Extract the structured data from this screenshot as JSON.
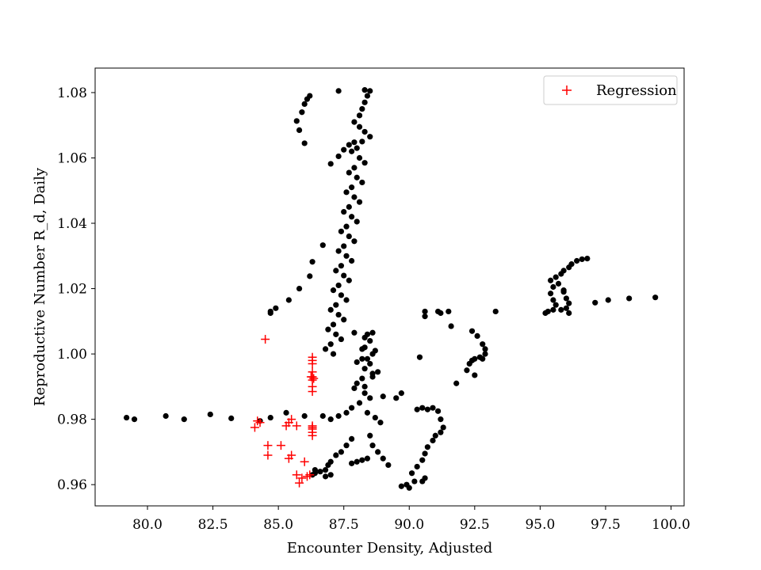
{
  "chart_data": {
    "type": "scatter",
    "title": "",
    "xlabel": "Encounter Density, Adjusted",
    "ylabel": "Reproductive Number R_d, Daily",
    "xlim": [
      78.0,
      100.5
    ],
    "ylim": [
      0.9535,
      1.0875
    ],
    "xticks": [
      80.0,
      82.5,
      85.0,
      87.5,
      90.0,
      92.5,
      95.0,
      97.5,
      100.0
    ],
    "xtick_labels": [
      "80.0",
      "82.5",
      "85.0",
      "87.5",
      "90.0",
      "92.5",
      "95.0",
      "97.5",
      "100.0"
    ],
    "yticks": [
      0.96,
      0.98,
      1.0,
      1.02,
      1.04,
      1.06,
      1.08
    ],
    "ytick_labels": [
      "0.96",
      "0.98",
      "1.00",
      "1.02",
      "1.04",
      "1.06",
      "1.08"
    ],
    "grid": false,
    "legend": {
      "position": "top-right",
      "entries": [
        "Regression"
      ]
    },
    "series": [
      {
        "role": "observed",
        "color": "#000000",
        "marker": "circle",
        "points": [
          [
            79.2,
            0.9805
          ],
          [
            79.5,
            0.98
          ],
          [
            80.7,
            0.981
          ],
          [
            81.4,
            0.98
          ],
          [
            82.4,
            0.9815
          ],
          [
            83.2,
            0.9803
          ],
          [
            84.3,
            0.9795
          ],
          [
            84.7,
            0.9805
          ],
          [
            85.3,
            0.982
          ],
          [
            86.0,
            0.981
          ],
          [
            84.7,
            1.0125
          ],
          [
            84.7,
            1.013
          ],
          [
            84.9,
            1.014
          ],
          [
            85.4,
            1.0165
          ],
          [
            85.8,
            1.02
          ],
          [
            86.2,
            1.0238
          ],
          [
            86.3,
            1.0282
          ],
          [
            86.7,
            1.0333
          ],
          [
            85.7,
            1.0713
          ],
          [
            85.8,
            1.0685
          ],
          [
            85.9,
            1.074
          ],
          [
            86.0,
            1.0765
          ],
          [
            86.1,
            1.078
          ],
          [
            86.2,
            1.079
          ],
          [
            86.0,
            1.0645
          ],
          [
            87.0,
            1.0582
          ],
          [
            87.3,
            1.0605
          ],
          [
            87.5,
            1.0625
          ],
          [
            87.7,
            1.064
          ],
          [
            87.9,
            1.0648
          ],
          [
            87.3,
            1.0805
          ],
          [
            88.3,
            1.0808
          ],
          [
            88.5,
            1.0805
          ],
          [
            88.4,
            1.079
          ],
          [
            88.3,
            1.077
          ],
          [
            88.2,
            1.075
          ],
          [
            88.1,
            1.073
          ],
          [
            87.9,
            1.071
          ],
          [
            88.1,
            1.0695
          ],
          [
            88.3,
            1.068
          ],
          [
            88.5,
            1.0665
          ],
          [
            88.2,
            1.065
          ],
          [
            88.0,
            1.063
          ],
          [
            87.8,
            1.062
          ],
          [
            88.1,
            1.06
          ],
          [
            88.3,
            1.0585
          ],
          [
            87.9,
            1.057
          ],
          [
            87.7,
            1.0555
          ],
          [
            88.0,
            1.054
          ],
          [
            88.2,
            1.0525
          ],
          [
            87.8,
            1.051
          ],
          [
            87.6,
            1.0495
          ],
          [
            87.9,
            1.048
          ],
          [
            88.1,
            1.0465
          ],
          [
            87.7,
            1.045
          ],
          [
            87.5,
            1.0435
          ],
          [
            87.8,
            1.042
          ],
          [
            88.0,
            1.0405
          ],
          [
            87.6,
            1.039
          ],
          [
            87.4,
            1.0375
          ],
          [
            87.7,
            1.036
          ],
          [
            87.9,
            1.0345
          ],
          [
            87.5,
            1.033
          ],
          [
            87.3,
            1.0315
          ],
          [
            87.6,
            1.03
          ],
          [
            87.8,
            1.0285
          ],
          [
            87.4,
            1.027
          ],
          [
            87.2,
            1.0255
          ],
          [
            87.5,
            1.024
          ],
          [
            87.7,
            1.0225
          ],
          [
            87.3,
            1.021
          ],
          [
            87.1,
            1.0195
          ],
          [
            87.4,
            1.018
          ],
          [
            87.6,
            1.0165
          ],
          [
            87.2,
            1.015
          ],
          [
            87.0,
            1.0135
          ],
          [
            87.3,
            1.012
          ],
          [
            87.5,
            1.0105
          ],
          [
            87.1,
            1.009
          ],
          [
            86.9,
            1.0075
          ],
          [
            87.2,
            1.006
          ],
          [
            87.4,
            1.0045
          ],
          [
            87.0,
            1.003
          ],
          [
            86.8,
            1.0015
          ],
          [
            87.1,
            1.0
          ],
          [
            88.4,
            1.006
          ],
          [
            88.5,
            1.004
          ],
          [
            88.3,
            1.002
          ],
          [
            88.6,
            1.0
          ],
          [
            88.2,
            0.9985
          ],
          [
            88.5,
            0.997
          ],
          [
            88.3,
            0.9955
          ],
          [
            88.6,
            0.994
          ],
          [
            88.2,
            0.9925
          ],
          [
            88.0,
            0.991
          ],
          [
            87.9,
            0.9895
          ],
          [
            88.3,
            0.988
          ],
          [
            88.5,
            0.9865
          ],
          [
            88.1,
            0.985
          ],
          [
            87.8,
            0.9835
          ],
          [
            88.4,
            0.982
          ],
          [
            88.7,
            0.9805
          ],
          [
            88.9,
            0.979
          ],
          [
            87.6,
            0.982
          ],
          [
            87.3,
            0.981
          ],
          [
            87.0,
            0.98
          ],
          [
            86.7,
            0.981
          ],
          [
            87.9,
            1.0065
          ],
          [
            88.3,
            1.005
          ],
          [
            88.6,
            1.0065
          ],
          [
            88.2,
            1.0015
          ],
          [
            88.7,
            1.001
          ],
          [
            88.4,
            0.9985
          ],
          [
            88.0,
            0.9975
          ],
          [
            88.6,
            0.993
          ],
          [
            88.8,
            0.9945
          ],
          [
            88.3,
            0.99
          ],
          [
            89.0,
            0.987
          ],
          [
            89.7,
            0.988
          ],
          [
            89.5,
            0.9865
          ],
          [
            87.8,
            0.974
          ],
          [
            87.6,
            0.972
          ],
          [
            87.4,
            0.97
          ],
          [
            87.2,
            0.969
          ],
          [
            87.0,
            0.967
          ],
          [
            86.9,
            0.966
          ],
          [
            86.8,
            0.9645
          ],
          [
            86.6,
            0.964
          ],
          [
            86.4,
            0.9635
          ],
          [
            86.3,
            0.963
          ],
          [
            86.4,
            0.9645
          ],
          [
            86.8,
            0.9625
          ],
          [
            87.0,
            0.963
          ],
          [
            88.0,
            0.967
          ],
          [
            88.2,
            0.9675
          ],
          [
            88.4,
            0.968
          ],
          [
            87.8,
            0.9665
          ],
          [
            88.6,
            0.972
          ],
          [
            88.8,
            0.97
          ],
          [
            89.0,
            0.968
          ],
          [
            88.5,
            0.975
          ],
          [
            89.2,
            0.966
          ],
          [
            90.4,
            0.999
          ],
          [
            90.3,
            0.983
          ],
          [
            89.9,
            0.96
          ],
          [
            89.7,
            0.9595
          ],
          [
            90.0,
            0.959
          ],
          [
            90.2,
            0.961
          ],
          [
            90.1,
            0.9635
          ],
          [
            90.3,
            0.9655
          ],
          [
            90.5,
            0.961
          ],
          [
            90.6,
            0.962
          ],
          [
            90.5,
            0.9675
          ],
          [
            90.6,
            0.9695
          ],
          [
            90.7,
            0.9715
          ],
          [
            90.9,
            0.9735
          ],
          [
            91.0,
            0.975
          ],
          [
            91.2,
            0.976
          ],
          [
            91.3,
            0.9775
          ],
          [
            91.2,
            0.98
          ],
          [
            91.1,
            0.9825
          ],
          [
            90.9,
            0.9835
          ],
          [
            90.7,
            0.983
          ],
          [
            90.5,
            0.9835
          ],
          [
            90.6,
            1.0115
          ],
          [
            90.6,
            1.013
          ],
          [
            91.1,
            1.013
          ],
          [
            91.2,
            1.0125
          ],
          [
            91.5,
            1.013
          ],
          [
            91.6,
            1.0085
          ],
          [
            91.8,
            0.991
          ],
          [
            92.2,
            0.995
          ],
          [
            92.3,
            0.997
          ],
          [
            92.4,
            0.998
          ],
          [
            92.5,
            0.9985
          ],
          [
            92.7,
            0.999
          ],
          [
            92.8,
            0.9985
          ],
          [
            92.9,
            1.0
          ],
          [
            92.9,
            1.0015
          ],
          [
            92.8,
            1.003
          ],
          [
            92.6,
            1.0055
          ],
          [
            92.4,
            1.007
          ],
          [
            92.5,
            0.9935
          ],
          [
            93.3,
            1.013
          ],
          [
            95.2,
            1.0125
          ],
          [
            95.3,
            1.013
          ],
          [
            95.5,
            1.0135
          ],
          [
            95.6,
            1.015
          ],
          [
            95.5,
            1.0165
          ],
          [
            95.4,
            1.0185
          ],
          [
            95.5,
            1.0205
          ],
          [
            95.4,
            1.0225
          ],
          [
            95.6,
            1.0235
          ],
          [
            95.8,
            1.0245
          ],
          [
            95.9,
            1.0255
          ],
          [
            96.1,
            1.0265
          ],
          [
            96.2,
            1.0275
          ],
          [
            96.4,
            1.0285
          ],
          [
            96.6,
            1.029
          ],
          [
            96.8,
            1.0292
          ],
          [
            95.7,
            1.0215
          ],
          [
            95.9,
            1.019
          ],
          [
            96.0,
            1.017
          ],
          [
            96.1,
            1.0155
          ],
          [
            96.0,
            1.014
          ],
          [
            95.8,
            1.0135
          ],
          [
            96.1,
            1.0125
          ],
          [
            95.9,
            1.0195
          ],
          [
            97.1,
            1.0157
          ],
          [
            97.6,
            1.0165
          ],
          [
            98.4,
            1.017
          ],
          [
            99.4,
            1.0173
          ]
        ]
      },
      {
        "role": "regression",
        "name": "Regression",
        "color": "#ff0000",
        "marker": "plus",
        "points": [
          [
            84.5,
            1.0045
          ],
          [
            84.2,
            0.9795
          ],
          [
            84.3,
            0.979
          ],
          [
            84.1,
            0.9775
          ],
          [
            84.6,
            0.972
          ],
          [
            84.6,
            0.969
          ],
          [
            85.1,
            0.972
          ],
          [
            85.3,
            0.978
          ],
          [
            85.4,
            0.979
          ],
          [
            85.5,
            0.98
          ],
          [
            85.7,
            0.978
          ],
          [
            85.4,
            0.968
          ],
          [
            85.5,
            0.969
          ],
          [
            85.7,
            0.963
          ],
          [
            85.9,
            0.962
          ],
          [
            85.8,
            0.9605
          ],
          [
            86.1,
            0.9625
          ],
          [
            86.2,
            0.963
          ],
          [
            86.0,
            0.967
          ],
          [
            86.3,
            0.999
          ],
          [
            86.3,
            0.998
          ],
          [
            86.3,
            0.997
          ],
          [
            86.3,
            0.9945
          ],
          [
            86.3,
            0.993
          ],
          [
            86.3,
            0.992
          ],
          [
            86.3,
            0.99
          ],
          [
            86.3,
            0.9885
          ],
          [
            86.3,
            0.978
          ],
          [
            86.3,
            0.977
          ],
          [
            86.3,
            0.976
          ],
          [
            86.3,
            0.975
          ],
          [
            86.25,
            0.993
          ],
          [
            86.35,
            0.9925
          ],
          [
            86.3,
            0.9775
          ]
        ]
      }
    ]
  }
}
